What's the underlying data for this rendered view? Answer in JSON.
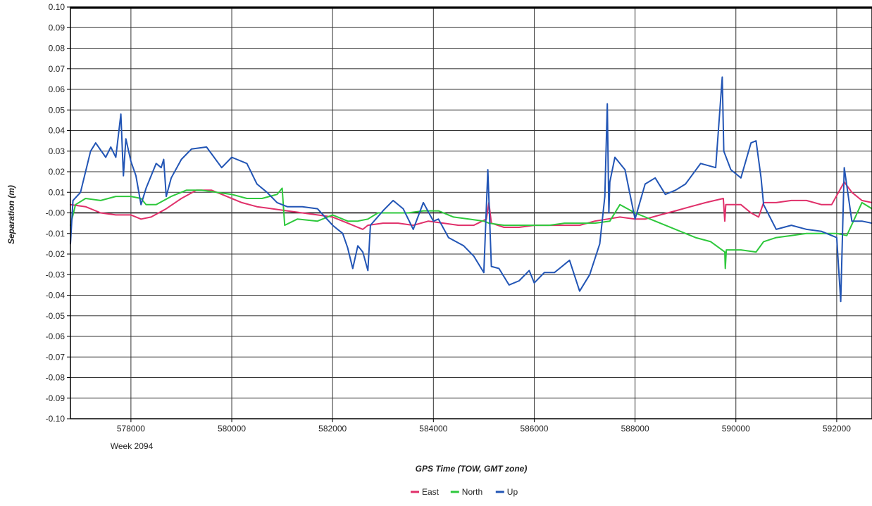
{
  "chart_data": {
    "type": "line",
    "xlabel": "GPS Time (TOW, GMT zone)",
    "ylabel": "Separation (m)",
    "x_sublabel": "Week 2094",
    "xlim": [
      576800,
      592700
    ],
    "ylim": [
      -0.1,
      0.1
    ],
    "x_ticks": [
      578000,
      580000,
      582000,
      584000,
      586000,
      588000,
      590000,
      592000
    ],
    "x_tick_labels": [
      "578000",
      "580000",
      "582000",
      "584000",
      "586000",
      "588000",
      "590000",
      "592000"
    ],
    "y_ticks": [
      0.1,
      0.09,
      0.08,
      0.07,
      0.06,
      0.05,
      0.04,
      0.03,
      0.02,
      0.01,
      0.0,
      -0.01,
      -0.02,
      -0.03,
      -0.04,
      -0.05,
      -0.06,
      -0.07,
      -0.08,
      -0.09,
      -0.1
    ],
    "y_tick_labels": [
      "0.10",
      "0.09",
      "0.08",
      "0.07",
      "0.06",
      "0.05",
      "0.04",
      "0.03",
      "0.02",
      "0.01",
      "-0.00",
      "-0.01",
      "-0.02",
      "-0.03",
      "-0.04",
      "-0.05",
      "-0.06",
      "-0.07",
      "-0.08",
      "-0.09",
      "-0.10"
    ],
    "grid": true,
    "legend_position": "bottom-center",
    "series": [
      {
        "name": "East",
        "color": "#e0306a",
        "points": [
          [
            576800,
            0.004
          ],
          [
            577100,
            0.003
          ],
          [
            577400,
            0.0
          ],
          [
            577700,
            -0.001
          ],
          [
            578000,
            -0.001
          ],
          [
            578200,
            -0.003
          ],
          [
            578400,
            -0.002
          ],
          [
            578700,
            0.002
          ],
          [
            579000,
            0.007
          ],
          [
            579300,
            0.011
          ],
          [
            579600,
            0.011
          ],
          [
            579900,
            0.008
          ],
          [
            580200,
            0.005
          ],
          [
            580500,
            0.003
          ],
          [
            580800,
            0.002
          ],
          [
            581100,
            0.001
          ],
          [
            581400,
            0.0
          ],
          [
            581700,
            -0.001
          ],
          [
            582000,
            -0.002
          ],
          [
            582300,
            -0.005
          ],
          [
            582600,
            -0.008
          ],
          [
            582700,
            -0.006
          ],
          [
            583000,
            -0.005
          ],
          [
            583300,
            -0.005
          ],
          [
            583600,
            -0.006
          ],
          [
            583900,
            -0.004
          ],
          [
            584200,
            -0.005
          ],
          [
            584500,
            -0.006
          ],
          [
            584800,
            -0.006
          ],
          [
            585050,
            -0.003
          ],
          [
            585100,
            0.005
          ],
          [
            585150,
            -0.005
          ],
          [
            585400,
            -0.007
          ],
          [
            585700,
            -0.007
          ],
          [
            586000,
            -0.006
          ],
          [
            586300,
            -0.006
          ],
          [
            586600,
            -0.006
          ],
          [
            586900,
            -0.006
          ],
          [
            587200,
            -0.004
          ],
          [
            587450,
            -0.003
          ],
          [
            587700,
            -0.002
          ],
          [
            588000,
            -0.003
          ],
          [
            588200,
            -0.003
          ],
          [
            588500,
            -0.001
          ],
          [
            588800,
            0.001
          ],
          [
            589100,
            0.003
          ],
          [
            589400,
            0.005
          ],
          [
            589750,
            0.007
          ],
          [
            589780,
            -0.004
          ],
          [
            589800,
            0.004
          ],
          [
            590100,
            0.004
          ],
          [
            590300,
            0.0
          ],
          [
            590450,
            -0.002
          ],
          [
            590550,
            0.005
          ],
          [
            590800,
            0.005
          ],
          [
            591100,
            0.006
          ],
          [
            591400,
            0.006
          ],
          [
            591700,
            0.004
          ],
          [
            591900,
            0.004
          ],
          [
            592150,
            0.015
          ],
          [
            592300,
            0.01
          ],
          [
            592500,
            0.006
          ],
          [
            592700,
            0.005
          ]
        ]
      },
      {
        "name": "North",
        "color": "#2ec83c",
        "points": [
          [
            576800,
            -0.006
          ],
          [
            576900,
            0.004
          ],
          [
            577100,
            0.007
          ],
          [
            577400,
            0.006
          ],
          [
            577700,
            0.008
          ],
          [
            578000,
            0.008
          ],
          [
            578200,
            0.007
          ],
          [
            578300,
            0.004
          ],
          [
            578500,
            0.004
          ],
          [
            578800,
            0.008
          ],
          [
            579100,
            0.011
          ],
          [
            579400,
            0.011
          ],
          [
            579700,
            0.01
          ],
          [
            580000,
            0.009
          ],
          [
            580300,
            0.007
          ],
          [
            580600,
            0.007
          ],
          [
            580900,
            0.009
          ],
          [
            581000,
            0.012
          ],
          [
            581050,
            -0.006
          ],
          [
            581300,
            -0.003
          ],
          [
            581700,
            -0.004
          ],
          [
            582000,
            -0.001
          ],
          [
            582300,
            -0.004
          ],
          [
            582500,
            -0.004
          ],
          [
            582700,
            -0.003
          ],
          [
            582900,
            0.0
          ],
          [
            583200,
            0.0
          ],
          [
            583500,
            0.0
          ],
          [
            583800,
            0.001
          ],
          [
            584100,
            0.001
          ],
          [
            584400,
            -0.002
          ],
          [
            584700,
            -0.003
          ],
          [
            585000,
            -0.004
          ],
          [
            585100,
            -0.005
          ],
          [
            585400,
            -0.006
          ],
          [
            585700,
            -0.006
          ],
          [
            586000,
            -0.006
          ],
          [
            586300,
            -0.006
          ],
          [
            586600,
            -0.005
          ],
          [
            586900,
            -0.005
          ],
          [
            587200,
            -0.005
          ],
          [
            587500,
            -0.004
          ],
          [
            587700,
            0.004
          ],
          [
            588000,
            0.0
          ],
          [
            588300,
            -0.003
          ],
          [
            588600,
            -0.006
          ],
          [
            588900,
            -0.009
          ],
          [
            589200,
            -0.012
          ],
          [
            589500,
            -0.014
          ],
          [
            589780,
            -0.019
          ],
          [
            589790,
            -0.027
          ],
          [
            589810,
            -0.018
          ],
          [
            590100,
            -0.018
          ],
          [
            590400,
            -0.019
          ],
          [
            590550,
            -0.014
          ],
          [
            590800,
            -0.012
          ],
          [
            591100,
            -0.011
          ],
          [
            591400,
            -0.01
          ],
          [
            591700,
            -0.01
          ],
          [
            592000,
            -0.01
          ],
          [
            592200,
            -0.011
          ],
          [
            592500,
            0.005
          ],
          [
            592700,
            0.002
          ]
        ]
      },
      {
        "name": "Up",
        "color": "#2255b5",
        "points": [
          [
            576800,
            -0.015
          ],
          [
            576850,
            0.006
          ],
          [
            577000,
            0.01
          ],
          [
            577200,
            0.03
          ],
          [
            577300,
            0.034
          ],
          [
            577500,
            0.027
          ],
          [
            577600,
            0.032
          ],
          [
            577700,
            0.027
          ],
          [
            577800,
            0.048
          ],
          [
            577850,
            0.018
          ],
          [
            577900,
            0.036
          ],
          [
            578000,
            0.025
          ],
          [
            578100,
            0.018
          ],
          [
            578200,
            0.004
          ],
          [
            578300,
            0.012
          ],
          [
            578500,
            0.024
          ],
          [
            578600,
            0.022
          ],
          [
            578650,
            0.026
          ],
          [
            578700,
            0.008
          ],
          [
            578800,
            0.017
          ],
          [
            579000,
            0.026
          ],
          [
            579200,
            0.031
          ],
          [
            579500,
            0.032
          ],
          [
            579800,
            0.022
          ],
          [
            580000,
            0.027
          ],
          [
            580300,
            0.024
          ],
          [
            580500,
            0.014
          ],
          [
            580700,
            0.01
          ],
          [
            580900,
            0.005
          ],
          [
            581100,
            0.003
          ],
          [
            581400,
            0.003
          ],
          [
            581700,
            0.002
          ],
          [
            582000,
            -0.006
          ],
          [
            582200,
            -0.01
          ],
          [
            582300,
            -0.017
          ],
          [
            582400,
            -0.027
          ],
          [
            582500,
            -0.016
          ],
          [
            582600,
            -0.019
          ],
          [
            582700,
            -0.028
          ],
          [
            582750,
            -0.006
          ],
          [
            583000,
            0.001
          ],
          [
            583200,
            0.006
          ],
          [
            583400,
            0.002
          ],
          [
            583600,
            -0.008
          ],
          [
            583800,
            0.005
          ],
          [
            584000,
            -0.004
          ],
          [
            584100,
            -0.003
          ],
          [
            584300,
            -0.012
          ],
          [
            584600,
            -0.016
          ],
          [
            584800,
            -0.021
          ],
          [
            585000,
            -0.029
          ],
          [
            585080,
            0.021
          ],
          [
            585150,
            -0.026
          ],
          [
            585300,
            -0.027
          ],
          [
            585500,
            -0.035
          ],
          [
            585700,
            -0.033
          ],
          [
            585900,
            -0.028
          ],
          [
            586000,
            -0.034
          ],
          [
            586200,
            -0.029
          ],
          [
            586400,
            -0.029
          ],
          [
            586500,
            -0.027
          ],
          [
            586700,
            -0.023
          ],
          [
            586900,
            -0.038
          ],
          [
            587100,
            -0.03
          ],
          [
            587300,
            -0.015
          ],
          [
            587400,
            0.008
          ],
          [
            587450,
            0.053
          ],
          [
            587480,
            0.0
          ],
          [
            587500,
            0.015
          ],
          [
            587600,
            0.027
          ],
          [
            587800,
            0.021
          ],
          [
            588000,
            -0.003
          ],
          [
            588200,
            0.014
          ],
          [
            588400,
            0.017
          ],
          [
            588600,
            0.009
          ],
          [
            588800,
            0.011
          ],
          [
            589000,
            0.014
          ],
          [
            589300,
            0.024
          ],
          [
            589600,
            0.022
          ],
          [
            589730,
            0.066
          ],
          [
            589760,
            0.03
          ],
          [
            589900,
            0.021
          ],
          [
            590100,
            0.017
          ],
          [
            590300,
            0.034
          ],
          [
            590400,
            0.035
          ],
          [
            590500,
            0.017
          ],
          [
            590550,
            0.004
          ],
          [
            590800,
            -0.008
          ],
          [
            591100,
            -0.006
          ],
          [
            591400,
            -0.008
          ],
          [
            591700,
            -0.009
          ],
          [
            592000,
            -0.012
          ],
          [
            592080,
            -0.043
          ],
          [
            592150,
            0.022
          ],
          [
            592300,
            -0.004
          ],
          [
            592500,
            -0.004
          ],
          [
            592700,
            -0.005
          ]
        ]
      }
    ]
  }
}
